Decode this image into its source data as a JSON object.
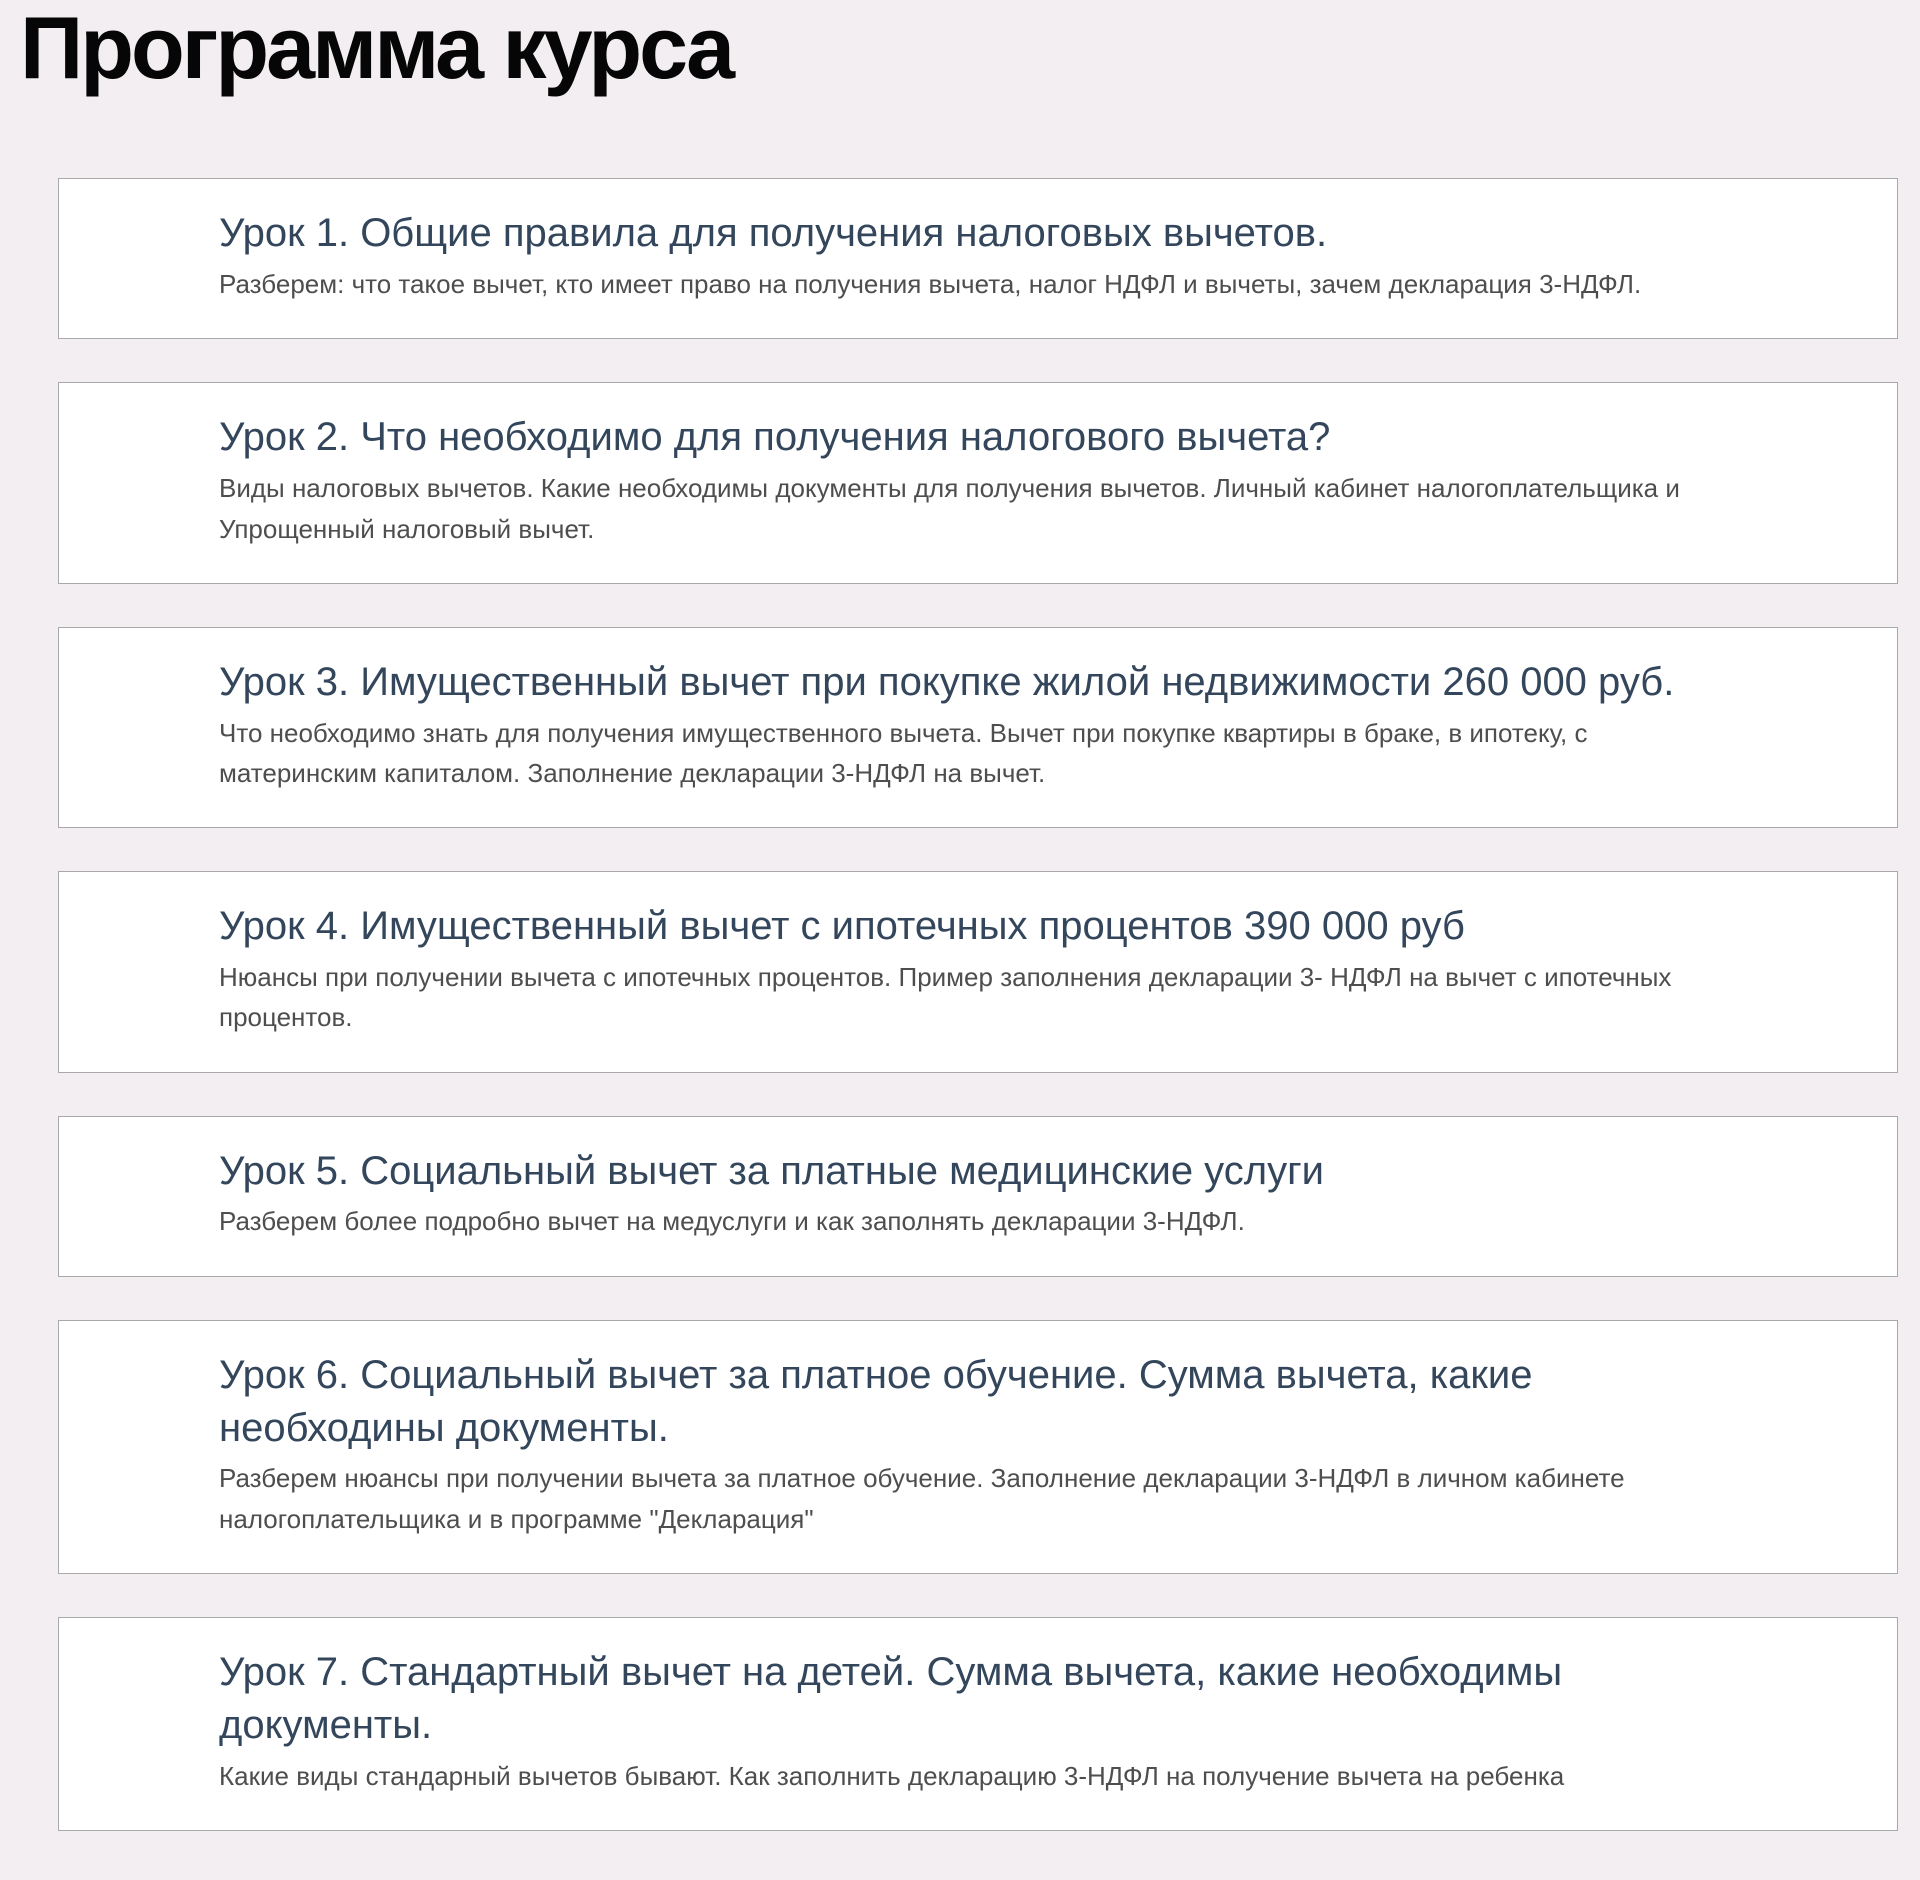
{
  "page": {
    "title": "Программа курса",
    "colors": {
      "background": "#f2eef2",
      "card_background": "#ffffff",
      "card_border": "#a9a9a9",
      "lesson_title": "#33465b",
      "lesson_description": "#4e4e4e",
      "heading": "#060606"
    }
  },
  "lessons": [
    {
      "title": "Урок 1. Общие правила для получения налоговых вычетов.",
      "description": "Разберем: что такое вычет, кто имеет право на получения вычета, налог НДФЛ и вычеты, зачем декларация 3-НДФЛ."
    },
    {
      "title": "Урок 2. Что необходимо для получения налогового вычета?",
      "description": "Виды налоговых вычетов. Какие необходимы документы для получения вычетов. Личный кабинет налогоплательщика и Упрощенный налоговый вычет."
    },
    {
      "title": "Урок 3. Имущественный вычет при покупке жилой недвижимости 260 000 руб.",
      "description": "Что необходимо знать для получения имущественного вычета. Вычет при покупке квартиры в браке, в ипотеку, с материнским капиталом. Заполнение декларации 3-НДФЛ на вычет."
    },
    {
      "title": "Урок 4. Имущественный вычет с ипотечных процентов 390 000 руб",
      "description": "Нюансы при получении вычета с ипотечных процентов. Пример заполнения декларации 3- НДФЛ на вычет с ипотечных процентов."
    },
    {
      "title": "Урок 5. Социальный вычет за платные медицинские услуги",
      "description": "Разберем более подробно вычет на медуслуги и как заполнять декларации 3-НДФЛ."
    },
    {
      "title": "Урок 6. Социальный вычет за платное обучение. Сумма вычета, какие необходины документы.",
      "description": "Разберем нюансы при получении вычета за платное обучение. Заполнение декларации 3-НДФЛ в личном кабинете налогоплательщика и в программе \"Декларация\""
    },
    {
      "title": "Урок 7. Стандартный вычет на детей. Сумма вычета, какие необходимы документы.",
      "description": "Какие виды стандарный вычетов бывают. Как заполнить декларацию 3-НДФЛ на получение вычета на ребенка"
    }
  ]
}
